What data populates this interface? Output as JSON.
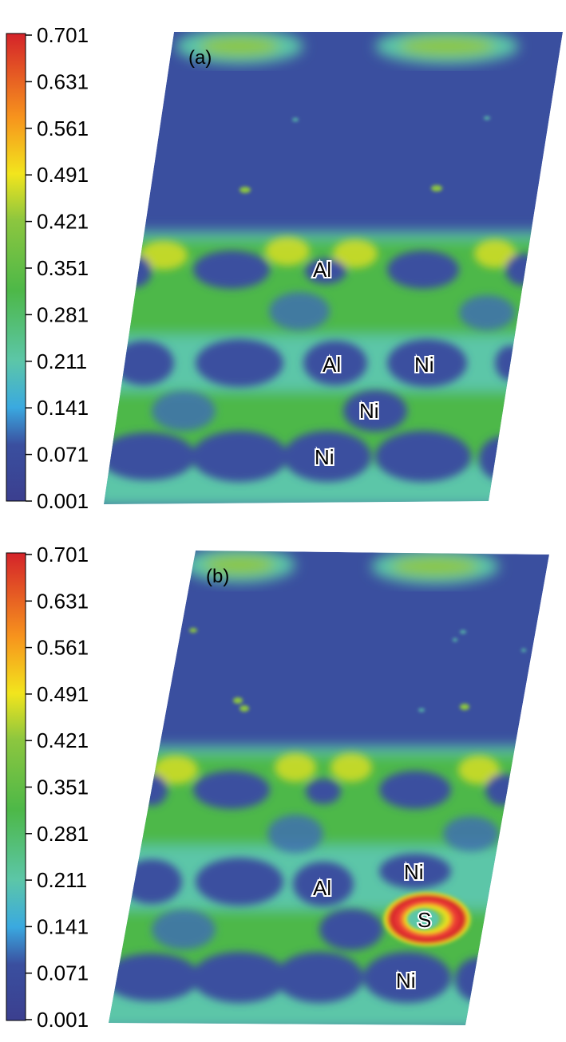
{
  "chart_data": [
    {
      "type": "heatmap",
      "panel_label": "(a)",
      "colorbar": {
        "ticks": [
          "0.701",
          "0.631",
          "0.561",
          "0.491",
          "0.421",
          "0.351",
          "0.281",
          "0.211",
          "0.141",
          "0.071",
          "0.001"
        ],
        "range": [
          0.001,
          0.701
        ],
        "colors": [
          "#3b3f8f",
          "#3a55a8",
          "#3aa9e0",
          "#5cc6a8",
          "#4db848",
          "#8cc63f",
          "#f2e51d",
          "#f7941d",
          "#ef4136",
          "#d4232a"
        ]
      },
      "atom_labels": [
        "Al",
        "Al",
        "Ni",
        "Ni",
        "Ni"
      ]
    },
    {
      "type": "heatmap",
      "panel_label": "(b)",
      "colorbar": {
        "ticks": [
          "0.701",
          "0.631",
          "0.561",
          "0.491",
          "0.421",
          "0.351",
          "0.281",
          "0.211",
          "0.141",
          "0.071",
          "0.001"
        ],
        "range": [
          0.001,
          0.701
        ],
        "colors": [
          "#3b3f8f",
          "#3a55a8",
          "#3aa9e0",
          "#5cc6a8",
          "#4db848",
          "#8cc63f",
          "#f2e51d",
          "#f7941d",
          "#ef4136",
          "#d4232a"
        ]
      },
      "atom_labels": [
        "Ni",
        "Al",
        "S",
        "Ni"
      ]
    }
  ]
}
